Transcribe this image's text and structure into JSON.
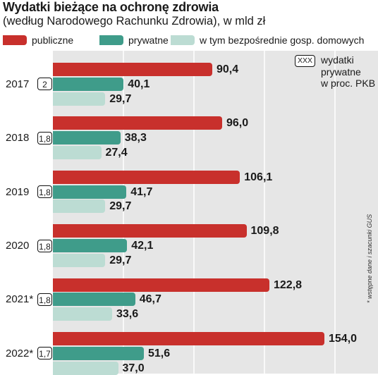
{
  "header": {
    "title": "Wydatki bieżące na ochronę zdrowia",
    "subtitle": "(według Narodowego Rachunku Zdrowia), w mld zł"
  },
  "legend": {
    "items": [
      {
        "label": "publiczne",
        "color": "#c8302c"
      },
      {
        "label": "prywatne",
        "color": "#3f9c8a"
      },
      {
        "label": "w tym bezpośrednie gosp. domowych",
        "color": "#bcdcd3"
      }
    ]
  },
  "note": {
    "box_label": "XXX",
    "text_lines": [
      "wydatki",
      "prywatne",
      "w proc. PKB"
    ]
  },
  "source": "* wstępne dane i szacunki GUS",
  "chart_data": {
    "type": "bar",
    "orientation": "horizontal",
    "categories": [
      "2017",
      "2018",
      "2019",
      "2020",
      "2021*",
      "2022*"
    ],
    "series": [
      {
        "name": "publiczne",
        "color": "#c8302c",
        "values": [
          90.4,
          96.0,
          106.1,
          109.8,
          122.8,
          154.0
        ],
        "labels": [
          "90,4",
          "96,0",
          "106,1",
          "109,8",
          "122,8",
          "154,0"
        ]
      },
      {
        "name": "prywatne",
        "color": "#3f9c8a",
        "values": [
          40.1,
          38.3,
          41.7,
          42.1,
          46.7,
          51.6
        ],
        "labels": [
          "40,1",
          "38,3",
          "41,7",
          "42,1",
          "46,7",
          "51,6"
        ]
      },
      {
        "name": "w tym bezpośrednie gosp. domowych",
        "color": "#bcdcd3",
        "values": [
          29.7,
          27.4,
          29.7,
          29.7,
          33.6,
          37.0
        ],
        "labels": [
          "29,7",
          "27,4",
          "29,7",
          "29,7",
          "33,6",
          "37,0"
        ]
      }
    ],
    "private_share_of_gdp": [
      "2",
      "1,8",
      "1,8",
      "1,8",
      "1,8",
      "1,7"
    ],
    "xlim": [
      0,
      180
    ],
    "grid": true
  }
}
